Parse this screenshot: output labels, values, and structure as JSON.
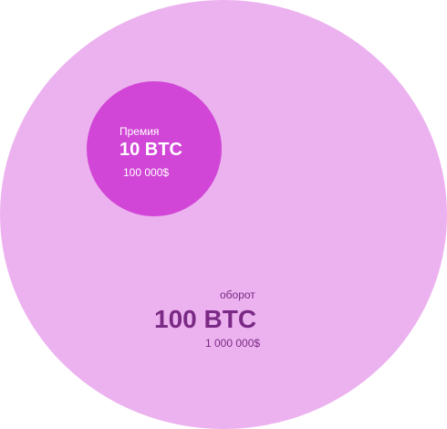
{
  "colors": {
    "turnover_fill": "#ecb2ef",
    "premium_fill": "#d146d6",
    "turnover_text": "#7a2a85",
    "premium_text": "#ffffff"
  },
  "premium": {
    "caption": "Премия",
    "amount": "10 BTC",
    "usd": "100 000$"
  },
  "turnover": {
    "caption": "оборот",
    "amount": "100 BTC",
    "usd": "1 000 000$"
  }
}
